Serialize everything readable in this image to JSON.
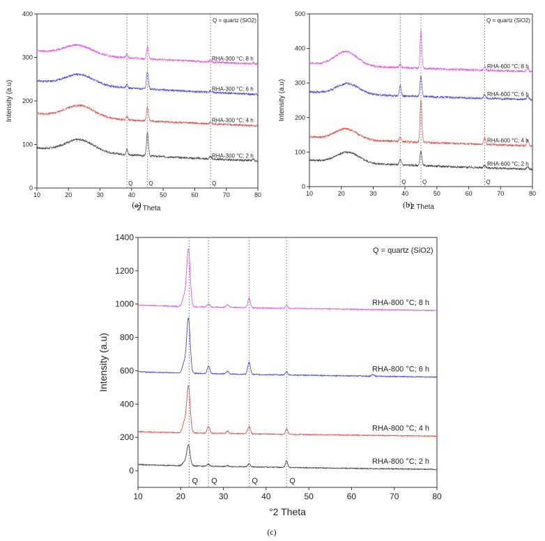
{
  "figure": {
    "panel_labels": [
      "(a)",
      "(b)",
      "(c)"
    ]
  },
  "chart_data": [
    {
      "id": "a",
      "type": "line",
      "title": "",
      "xlabel": "°2 Theta",
      "ylabel": "Intensity (a.u)",
      "xlim": [
        10,
        80
      ],
      "ylim": [
        0,
        400
      ],
      "xticks": [
        10,
        20,
        30,
        40,
        50,
        60,
        70,
        80
      ],
      "yticks": [
        0,
        100,
        200,
        300,
        400
      ],
      "legend_note": "Q = quartz (SiO2)",
      "q_lines": [
        38.5,
        45,
        65
      ],
      "series": [
        {
          "name": "RHA-300 °C; 2 h",
          "color": "#444444",
          "baseline": 93,
          "tail": 62,
          "peaks": [
            [
              23.5,
              28,
              4.5
            ],
            [
              45,
              52,
              0.3
            ],
            [
              38.5,
              12,
              0.3
            ],
            [
              65,
              5,
              0.3
            ],
            [
              78.5,
              4,
              0.3
            ]
          ]
        },
        {
          "name": "RHA-300 °C; 4 h",
          "color": "#d9534f",
          "baseline": 172,
          "tail": 143,
          "peaks": [
            [
              23.5,
              27,
              4.5
            ],
            [
              45,
              32,
              0.3
            ],
            [
              38.5,
              8,
              0.3
            ],
            [
              65,
              3,
              0.3
            ]
          ]
        },
        {
          "name": "RHA-300 °C; 6 h",
          "color": "#4a4ad8",
          "baseline": 247,
          "tail": 215,
          "peaks": [
            [
              23.5,
              24,
              4.5
            ],
            [
              45,
              40,
              0.3
            ],
            [
              38.5,
              8,
              0.3
            ],
            [
              65,
              4,
              0.3
            ]
          ]
        },
        {
          "name": "RHA-300 °C; 8 h",
          "color": "#e056e0",
          "baseline": 316,
          "tail": 285,
          "peaks": [
            [
              23,
              22,
              4.5
            ],
            [
              45,
              28,
              0.3
            ],
            [
              38.5,
              8,
              0.3
            ],
            [
              65,
              3,
              0.3
            ],
            [
              78.5,
              3,
              0.3
            ]
          ]
        }
      ]
    },
    {
      "id": "b",
      "type": "line",
      "title": "",
      "xlabel": "°2 Theta",
      "ylabel": "Intensity (a.u)",
      "xlim": [
        10,
        80
      ],
      "ylim": [
        0,
        500
      ],
      "xticks": [
        10,
        20,
        30,
        40,
        50,
        60,
        70,
        80
      ],
      "yticks": [
        0,
        100,
        200,
        300,
        400,
        500
      ],
      "legend_note": "Q = quartz (SiO2)",
      "q_lines": [
        38.5,
        45,
        65
      ],
      "series": [
        {
          "name": "RHA-600 °C; 2 h",
          "color": "#444444",
          "baseline": 78,
          "tail": 50,
          "peaks": [
            [
              22,
              30,
              3.5
            ],
            [
              45,
              42,
              0.3
            ],
            [
              38.5,
              15,
              0.3
            ],
            [
              65,
              8,
              0.3
            ],
            [
              78.5,
              7,
              0.3
            ]
          ]
        },
        {
          "name": "RHA-600 °C; 4 h",
          "color": "#d9534f",
          "baseline": 145,
          "tail": 118,
          "peaks": [
            [
              21.5,
              30,
              3.5
            ],
            [
              45,
              125,
              0.28
            ],
            [
              38.5,
              12,
              0.3
            ],
            [
              65,
              18,
              0.3
            ],
            [
              78.5,
              15,
              0.3
            ]
          ]
        },
        {
          "name": "RHA-600 °C; 6 h",
          "color": "#4a4ad8",
          "baseline": 275,
          "tail": 252,
          "peaks": [
            [
              22,
              30,
              3.5
            ],
            [
              45,
              60,
              0.28
            ],
            [
              38.5,
              30,
              0.3
            ],
            [
              65,
              12,
              0.3
            ],
            [
              78.5,
              10,
              0.3
            ]
          ]
        },
        {
          "name": "RHA-600 °C; 8 h",
          "color": "#e056e0",
          "baseline": 358,
          "tail": 333,
          "peaks": [
            [
              21.5,
              40,
              3.5
            ],
            [
              45,
              110,
              0.28
            ],
            [
              38.5,
              10,
              0.3
            ],
            [
              65,
              10,
              0.3
            ],
            [
              78.5,
              10,
              0.3
            ]
          ]
        }
      ]
    },
    {
      "id": "c",
      "type": "line",
      "title": "",
      "xlabel": "°2 Theta",
      "ylabel": "Intensity (a.u)",
      "xlim": [
        10,
        80
      ],
      "ylim": [
        -100,
        1400
      ],
      "xticks": [
        10,
        20,
        30,
        40,
        50,
        60,
        70,
        80
      ],
      "yticks": [
        0,
        200,
        400,
        600,
        800,
        1000,
        1200,
        1400
      ],
      "legend_note": "Q = quartz (SiO2)",
      "q_lines": [
        22,
        26.5,
        36,
        44.8
      ],
      "series": [
        {
          "name": "RHA-800 °C; 2 h",
          "color": "#444444",
          "baseline": 38,
          "tail": 8,
          "peaks": [
            [
              21.8,
              125,
              0.4
            ],
            [
              20.8,
              20,
              0.4
            ],
            [
              26.5,
              12,
              0.3
            ],
            [
              31,
              5,
              0.3
            ],
            [
              36,
              18,
              0.3
            ],
            [
              44.8,
              40,
              0.25
            ]
          ]
        },
        {
          "name": "RHA-800 °C; 4 h",
          "color": "#d9534f",
          "baseline": 235,
          "tail": 208,
          "peaks": [
            [
              21.8,
              280,
              0.4
            ],
            [
              20.8,
              60,
              0.4
            ],
            [
              26.5,
              40,
              0.3
            ],
            [
              31,
              15,
              0.3
            ],
            [
              36,
              45,
              0.3
            ],
            [
              44.8,
              35,
              0.25
            ]
          ]
        },
        {
          "name": "RHA-800 °C; 6 h",
          "color": "#4a4ad8",
          "baseline": 595,
          "tail": 562,
          "peaks": [
            [
              21.8,
              330,
              0.4
            ],
            [
              20.8,
              60,
              0.4
            ],
            [
              26.5,
              45,
              0.3
            ],
            [
              31,
              15,
              0.3
            ],
            [
              36,
              75,
              0.3
            ],
            [
              44.8,
              20,
              0.25
            ],
            [
              65,
              10,
              0.3
            ]
          ]
        },
        {
          "name": "RHA-800 °C; 8 h",
          "color": "#e056e0",
          "baseline": 995,
          "tail": 962,
          "peaks": [
            [
              21.8,
              345,
              0.4
            ],
            [
              20.8,
              60,
              0.4
            ],
            [
              26.5,
              18,
              0.3
            ],
            [
              31,
              15,
              0.3
            ],
            [
              36,
              55,
              0.3
            ],
            [
              44.8,
              20,
              0.25
            ]
          ]
        }
      ]
    }
  ]
}
